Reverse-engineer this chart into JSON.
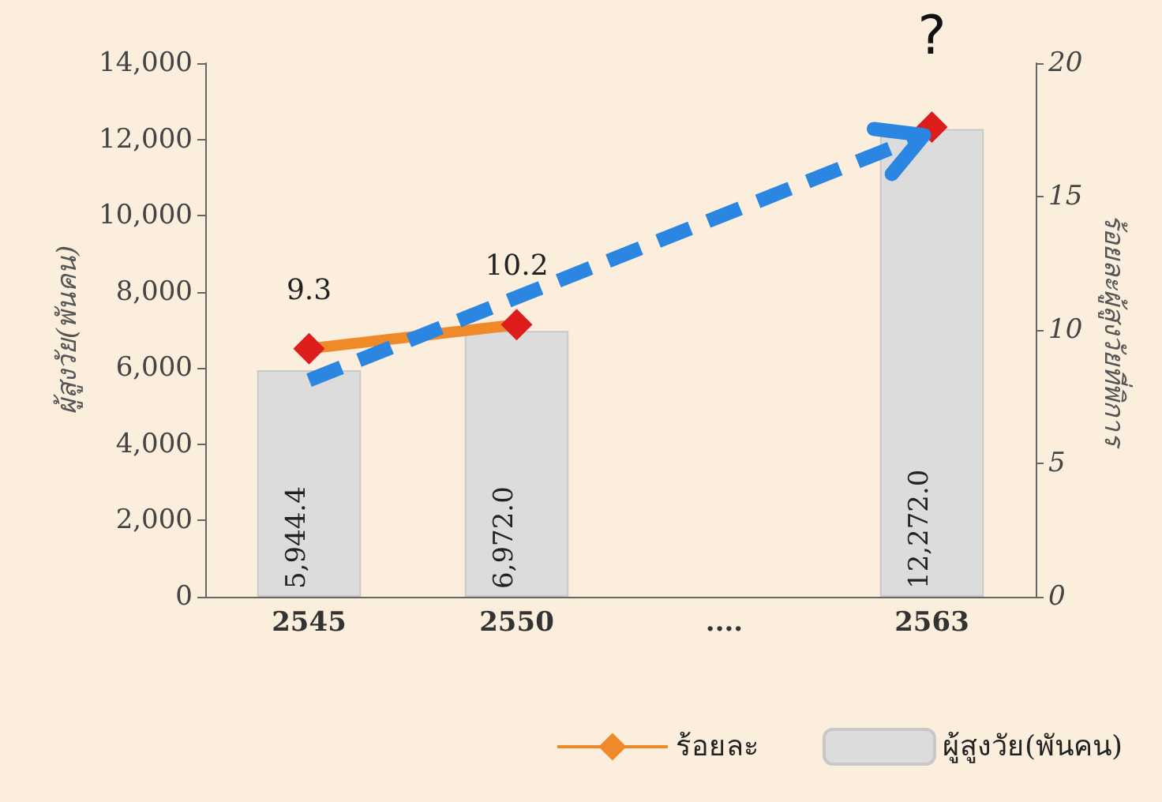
{
  "chart_data": {
    "type": "bar",
    "ylabel": "ผู้สูงวัย(พันคน)",
    "y2label": "ร้อยละผู้สูงวัยที่พิการ",
    "categories": [
      "2545",
      "2550",
      "....",
      "2563"
    ],
    "series": [
      {
        "name": "ร้อยละ",
        "type": "line",
        "axis": "y2",
        "color": "#f0892a",
        "colors": [
          "#dd1c1c",
          "#dd1c1c",
          null,
          "#dd1c1c"
        ],
        "values": [
          9.3,
          10.2,
          null,
          17.6
        ],
        "value_labels": [
          "9.3",
          "10.2",
          null,
          null
        ]
      },
      {
        "name": "ผู้สูงวัย(พันคน)",
        "color": "#dcdcdc",
        "values": [
          5944.4,
          6972.0,
          null,
          12272.0
        ],
        "value_labels": [
          "5,944.4",
          "6,972.0",
          null,
          "12,272.0"
        ]
      }
    ],
    "ylim": [
      0,
      14000
    ],
    "yticks": [
      {
        "value": 0,
        "label": "0"
      },
      {
        "value": 2000,
        "label": "2,000"
      },
      {
        "value": 4000,
        "label": "4,000"
      },
      {
        "value": 6000,
        "label": "6,000"
      },
      {
        "value": 8000,
        "label": "8,000"
      },
      {
        "value": 10000,
        "label": "10,000"
      },
      {
        "value": 12000,
        "label": "12,000"
      },
      {
        "value": 14000,
        "label": "14,000"
      }
    ],
    "y2lim": [
      0,
      20
    ],
    "y2ticks": [
      0,
      5,
      10,
      15,
      20
    ],
    "marker": "diamond",
    "grid": false,
    "legend": "bottom right",
    "annotations": [
      "?"
    ]
  }
}
